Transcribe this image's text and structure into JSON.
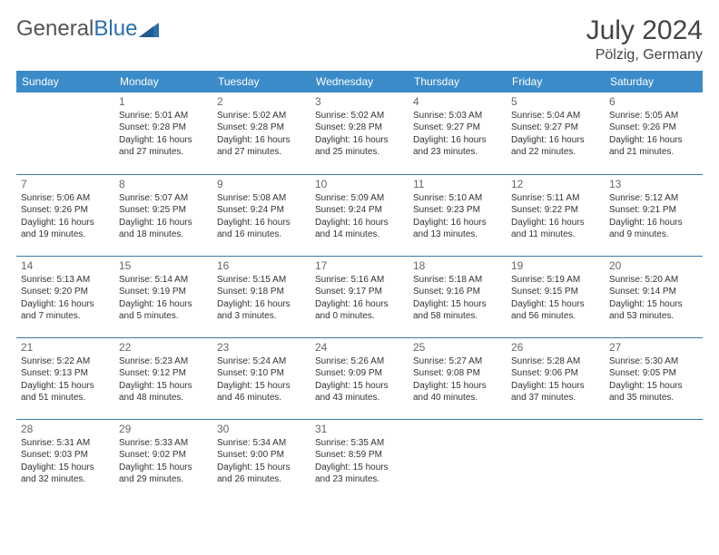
{
  "logo": {
    "text1": "General",
    "text2": "Blue"
  },
  "title": "July 2024",
  "location": "Pölzig, Germany",
  "colors": {
    "header_bg": "#3b8bc9",
    "header_text": "#ffffff",
    "row_border": "#3b78a8",
    "text": "#333333",
    "daynum": "#666666",
    "logo_gray": "#555555",
    "logo_blue": "#2b6fb0"
  },
  "weekdays": [
    "Sunday",
    "Monday",
    "Tuesday",
    "Wednesday",
    "Thursday",
    "Friday",
    "Saturday"
  ],
  "weeks": [
    [
      null,
      {
        "n": "1",
        "sr": "5:01 AM",
        "ss": "9:28 PM",
        "dl": "16 hours and 27 minutes."
      },
      {
        "n": "2",
        "sr": "5:02 AM",
        "ss": "9:28 PM",
        "dl": "16 hours and 27 minutes."
      },
      {
        "n": "3",
        "sr": "5:02 AM",
        "ss": "9:28 PM",
        "dl": "16 hours and 25 minutes."
      },
      {
        "n": "4",
        "sr": "5:03 AM",
        "ss": "9:27 PM",
        "dl": "16 hours and 23 minutes."
      },
      {
        "n": "5",
        "sr": "5:04 AM",
        "ss": "9:27 PM",
        "dl": "16 hours and 22 minutes."
      },
      {
        "n": "6",
        "sr": "5:05 AM",
        "ss": "9:26 PM",
        "dl": "16 hours and 21 minutes."
      }
    ],
    [
      {
        "n": "7",
        "sr": "5:06 AM",
        "ss": "9:26 PM",
        "dl": "16 hours and 19 minutes."
      },
      {
        "n": "8",
        "sr": "5:07 AM",
        "ss": "9:25 PM",
        "dl": "16 hours and 18 minutes."
      },
      {
        "n": "9",
        "sr": "5:08 AM",
        "ss": "9:24 PM",
        "dl": "16 hours and 16 minutes."
      },
      {
        "n": "10",
        "sr": "5:09 AM",
        "ss": "9:24 PM",
        "dl": "16 hours and 14 minutes."
      },
      {
        "n": "11",
        "sr": "5:10 AM",
        "ss": "9:23 PM",
        "dl": "16 hours and 13 minutes."
      },
      {
        "n": "12",
        "sr": "5:11 AM",
        "ss": "9:22 PM",
        "dl": "16 hours and 11 minutes."
      },
      {
        "n": "13",
        "sr": "5:12 AM",
        "ss": "9:21 PM",
        "dl": "16 hours and 9 minutes."
      }
    ],
    [
      {
        "n": "14",
        "sr": "5:13 AM",
        "ss": "9:20 PM",
        "dl": "16 hours and 7 minutes."
      },
      {
        "n": "15",
        "sr": "5:14 AM",
        "ss": "9:19 PM",
        "dl": "16 hours and 5 minutes."
      },
      {
        "n": "16",
        "sr": "5:15 AM",
        "ss": "9:18 PM",
        "dl": "16 hours and 3 minutes."
      },
      {
        "n": "17",
        "sr": "5:16 AM",
        "ss": "9:17 PM",
        "dl": "16 hours and 0 minutes."
      },
      {
        "n": "18",
        "sr": "5:18 AM",
        "ss": "9:16 PM",
        "dl": "15 hours and 58 minutes."
      },
      {
        "n": "19",
        "sr": "5:19 AM",
        "ss": "9:15 PM",
        "dl": "15 hours and 56 minutes."
      },
      {
        "n": "20",
        "sr": "5:20 AM",
        "ss": "9:14 PM",
        "dl": "15 hours and 53 minutes."
      }
    ],
    [
      {
        "n": "21",
        "sr": "5:22 AM",
        "ss": "9:13 PM",
        "dl": "15 hours and 51 minutes."
      },
      {
        "n": "22",
        "sr": "5:23 AM",
        "ss": "9:12 PM",
        "dl": "15 hours and 48 minutes."
      },
      {
        "n": "23",
        "sr": "5:24 AM",
        "ss": "9:10 PM",
        "dl": "15 hours and 46 minutes."
      },
      {
        "n": "24",
        "sr": "5:26 AM",
        "ss": "9:09 PM",
        "dl": "15 hours and 43 minutes."
      },
      {
        "n": "25",
        "sr": "5:27 AM",
        "ss": "9:08 PM",
        "dl": "15 hours and 40 minutes."
      },
      {
        "n": "26",
        "sr": "5:28 AM",
        "ss": "9:06 PM",
        "dl": "15 hours and 37 minutes."
      },
      {
        "n": "27",
        "sr": "5:30 AM",
        "ss": "9:05 PM",
        "dl": "15 hours and 35 minutes."
      }
    ],
    [
      {
        "n": "28",
        "sr": "5:31 AM",
        "ss": "9:03 PM",
        "dl": "15 hours and 32 minutes."
      },
      {
        "n": "29",
        "sr": "5:33 AM",
        "ss": "9:02 PM",
        "dl": "15 hours and 29 minutes."
      },
      {
        "n": "30",
        "sr": "5:34 AM",
        "ss": "9:00 PM",
        "dl": "15 hours and 26 minutes."
      },
      {
        "n": "31",
        "sr": "5:35 AM",
        "ss": "8:59 PM",
        "dl": "15 hours and 23 minutes."
      },
      null,
      null,
      null
    ]
  ],
  "labels": {
    "sunrise": "Sunrise:",
    "sunset": "Sunset:",
    "daylight": "Daylight:"
  }
}
